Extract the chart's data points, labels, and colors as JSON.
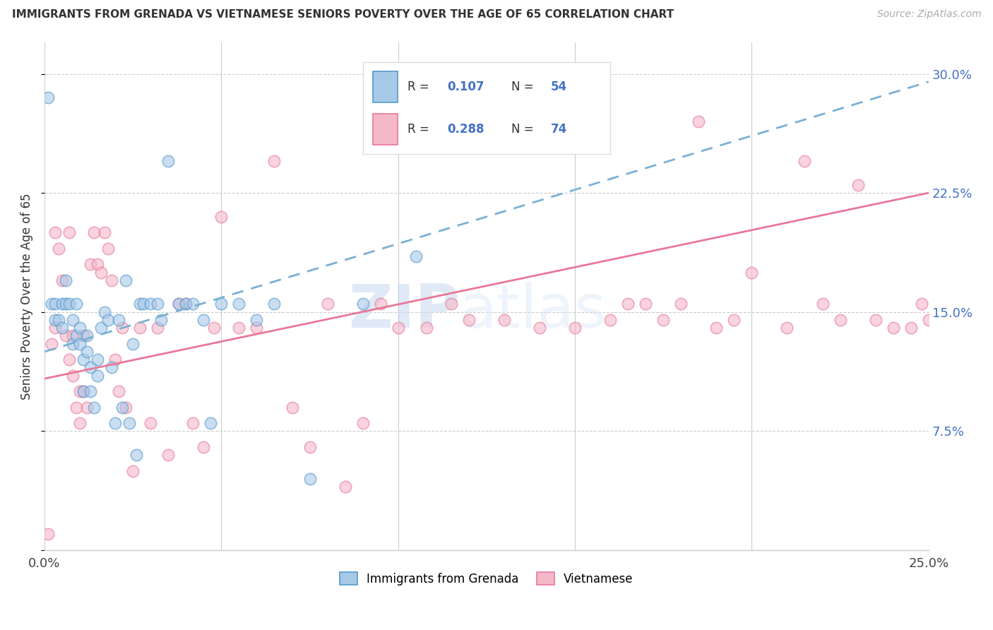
{
  "title": "IMMIGRANTS FROM GRENADA VS VIETNAMESE SENIORS POVERTY OVER THE AGE OF 65 CORRELATION CHART",
  "source": "Source: ZipAtlas.com",
  "ylabel": "Seniors Poverty Over the Age of 65",
  "xlim": [
    0.0,
    0.25
  ],
  "ylim": [
    0.0,
    0.32
  ],
  "xticks": [
    0.0,
    0.05,
    0.1,
    0.15,
    0.2,
    0.25
  ],
  "yticks": [
    0.0,
    0.075,
    0.15,
    0.225,
    0.3
  ],
  "ytick_labels": [
    "",
    "7.5%",
    "15.0%",
    "22.5%",
    "30.0%"
  ],
  "watermark_zip": "ZIP",
  "watermark_atlas": "atlas",
  "color_blue_fill": "#a8c8e8",
  "color_blue_edge": "#5599cc",
  "color_blue_line": "#7ab0d4",
  "color_pink_fill": "#f5b8c8",
  "color_pink_edge": "#e87898",
  "color_pink_line": "#e87898",
  "series1_label": "Immigrants from Grenada",
  "series2_label": "Vietnamese",
  "legend_r1": "0.107",
  "legend_n1": "54",
  "legend_r2": "0.288",
  "legend_n2": "74",
  "blue_line_x0": 0.0,
  "blue_line_y0": 0.125,
  "blue_line_x1": 0.25,
  "blue_line_y1": 0.295,
  "pink_line_x0": 0.0,
  "pink_line_y0": 0.108,
  "pink_line_x1": 0.25,
  "pink_line_y1": 0.225,
  "grenada_x": [
    0.001,
    0.002,
    0.003,
    0.003,
    0.004,
    0.005,
    0.005,
    0.006,
    0.006,
    0.007,
    0.008,
    0.008,
    0.009,
    0.009,
    0.01,
    0.01,
    0.011,
    0.011,
    0.012,
    0.012,
    0.013,
    0.013,
    0.014,
    0.015,
    0.015,
    0.016,
    0.017,
    0.018,
    0.019,
    0.02,
    0.021,
    0.022,
    0.023,
    0.024,
    0.025,
    0.026,
    0.027,
    0.028,
    0.03,
    0.032,
    0.033,
    0.035,
    0.038,
    0.04,
    0.042,
    0.045,
    0.047,
    0.05,
    0.055,
    0.06,
    0.065,
    0.075,
    0.09,
    0.105
  ],
  "grenada_y": [
    0.285,
    0.155,
    0.145,
    0.155,
    0.145,
    0.155,
    0.14,
    0.17,
    0.155,
    0.155,
    0.145,
    0.13,
    0.155,
    0.135,
    0.14,
    0.13,
    0.12,
    0.1,
    0.135,
    0.125,
    0.115,
    0.1,
    0.09,
    0.12,
    0.11,
    0.14,
    0.15,
    0.145,
    0.115,
    0.08,
    0.145,
    0.09,
    0.17,
    0.08,
    0.13,
    0.06,
    0.155,
    0.155,
    0.155,
    0.155,
    0.145,
    0.245,
    0.155,
    0.155,
    0.155,
    0.145,
    0.08,
    0.155,
    0.155,
    0.145,
    0.155,
    0.045,
    0.155,
    0.185
  ],
  "vietnamese_x": [
    0.001,
    0.002,
    0.003,
    0.003,
    0.004,
    0.005,
    0.006,
    0.007,
    0.007,
    0.008,
    0.008,
    0.009,
    0.01,
    0.01,
    0.011,
    0.011,
    0.012,
    0.013,
    0.014,
    0.015,
    0.016,
    0.017,
    0.018,
    0.019,
    0.02,
    0.021,
    0.022,
    0.023,
    0.025,
    0.027,
    0.03,
    0.032,
    0.035,
    0.038,
    0.04,
    0.042,
    0.045,
    0.048,
    0.05,
    0.055,
    0.06,
    0.065,
    0.07,
    0.075,
    0.08,
    0.085,
    0.09,
    0.095,
    0.1,
    0.108,
    0.115,
    0.12,
    0.13,
    0.14,
    0.15,
    0.16,
    0.165,
    0.17,
    0.175,
    0.18,
    0.185,
    0.19,
    0.195,
    0.2,
    0.21,
    0.215,
    0.22,
    0.225,
    0.23,
    0.235,
    0.24,
    0.245,
    0.248,
    0.25
  ],
  "vietnamese_y": [
    0.01,
    0.13,
    0.2,
    0.14,
    0.19,
    0.17,
    0.135,
    0.12,
    0.2,
    0.135,
    0.11,
    0.09,
    0.1,
    0.08,
    0.135,
    0.1,
    0.09,
    0.18,
    0.2,
    0.18,
    0.175,
    0.2,
    0.19,
    0.17,
    0.12,
    0.1,
    0.14,
    0.09,
    0.05,
    0.14,
    0.08,
    0.14,
    0.06,
    0.155,
    0.155,
    0.08,
    0.065,
    0.14,
    0.21,
    0.14,
    0.14,
    0.245,
    0.09,
    0.065,
    0.155,
    0.04,
    0.08,
    0.155,
    0.14,
    0.14,
    0.155,
    0.145,
    0.145,
    0.14,
    0.14,
    0.145,
    0.155,
    0.155,
    0.145,
    0.155,
    0.27,
    0.14,
    0.145,
    0.175,
    0.14,
    0.245,
    0.155,
    0.145,
    0.23,
    0.145,
    0.14,
    0.14,
    0.155,
    0.145
  ]
}
